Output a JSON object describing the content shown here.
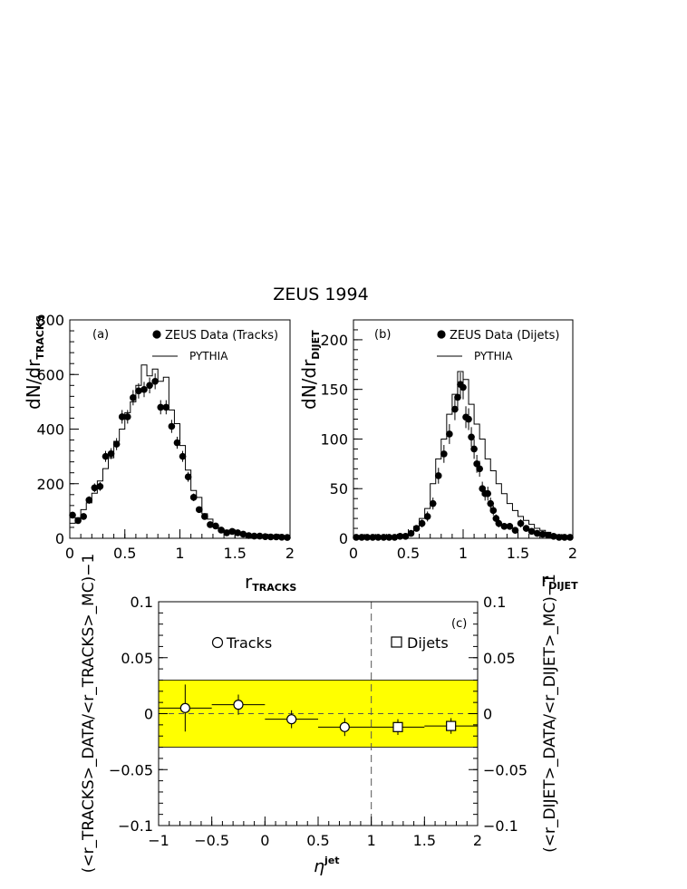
{
  "title": "ZEUS 1994",
  "colors": {
    "band": "#ffff00",
    "ink": "#000000"
  },
  "chart_data": [
    {
      "id": "a",
      "type": "scatter",
      "panel_label": "(a)",
      "ylabel_main": "dN/dr",
      "ylabel_sub": "TRACKS",
      "xlabel_main": "r",
      "xlabel_sub": "TRACKS",
      "xlim": [
        0,
        2
      ],
      "ylim": [
        0,
        800
      ],
      "xticks": [
        0,
        0.5,
        1,
        1.5,
        2
      ],
      "xtick_labels": [
        "0",
        "0.5",
        "1",
        "1.5",
        "2"
      ],
      "yticks": [
        0,
        200,
        400,
        600,
        800
      ],
      "ytick_labels": [
        "0",
        "200",
        "400",
        "600",
        "800"
      ],
      "legend": {
        "placement": "top-right",
        "data_label": "ZEUS Data (Tracks)",
        "mc_label": "PYTHIA"
      },
      "series": [
        {
          "name": "ZEUS Data (Tracks)",
          "x": [
            0.025,
            0.075,
            0.125,
            0.175,
            0.225,
            0.275,
            0.325,
            0.375,
            0.425,
            0.475,
            0.525,
            0.575,
            0.625,
            0.675,
            0.725,
            0.775,
            0.825,
            0.875,
            0.925,
            0.975,
            1.025,
            1.075,
            1.125,
            1.175,
            1.225,
            1.275,
            1.325,
            1.375,
            1.425,
            1.475,
            1.525,
            1.575,
            1.625,
            1.675,
            1.725,
            1.775,
            1.825,
            1.875,
            1.925,
            1.975
          ],
          "y": [
            85,
            65,
            80,
            140,
            185,
            190,
            300,
            310,
            345,
            445,
            445,
            515,
            540,
            545,
            560,
            575,
            480,
            480,
            410,
            350,
            300,
            225,
            150,
            105,
            80,
            50,
            45,
            30,
            20,
            25,
            20,
            15,
            10,
            8,
            8,
            6,
            5,
            5,
            4,
            3
          ],
          "yerr": [
            12,
            10,
            10,
            14,
            16,
            16,
            20,
            20,
            22,
            25,
            25,
            28,
            28,
            28,
            29,
            29,
            26,
            26,
            24,
            22,
            20,
            18,
            14,
            12,
            10,
            9,
            8,
            7,
            6,
            6,
            5,
            5,
            4,
            4,
            4,
            3,
            3,
            3,
            2,
            2
          ]
        },
        {
          "name": "PYTHIA",
          "edges": [
            0,
            0.05,
            0.1,
            0.15,
            0.2,
            0.25,
            0.3,
            0.35,
            0.4,
            0.45,
            0.5,
            0.55,
            0.6,
            0.65,
            0.7,
            0.75,
            0.8,
            0.85,
            0.9,
            0.95,
            1.0,
            1.05,
            1.1,
            1.15,
            1.2,
            1.25,
            1.3,
            1.35,
            1.4,
            1.45,
            1.5,
            1.55,
            1.6,
            1.65,
            1.7,
            1.75,
            1.8,
            1.85,
            1.9,
            1.95,
            2.0
          ],
          "values": [
            55,
            75,
            105,
            130,
            165,
            210,
            255,
            295,
            355,
            400,
            460,
            500,
            560,
            635,
            595,
            620,
            575,
            590,
            470,
            420,
            340,
            250,
            175,
            150,
            90,
            70,
            45,
            35,
            30,
            25,
            22,
            18,
            14,
            12,
            10,
            8,
            7,
            6,
            5,
            4
          ]
        }
      ]
    },
    {
      "id": "b",
      "type": "scatter",
      "panel_label": "(b)",
      "ylabel_main": "dN/dr",
      "ylabel_sub": "DIJET",
      "xlabel_main": "r",
      "xlabel_sub": "DIJET",
      "xlim": [
        0,
        2
      ],
      "ylim": [
        0,
        220
      ],
      "xticks": [
        0,
        0.5,
        1,
        1.5,
        2
      ],
      "xtick_labels": [
        "0",
        "0.5",
        "1",
        "1.5",
        "2"
      ],
      "yticks": [
        0,
        50,
        100,
        150,
        200
      ],
      "ytick_labels": [
        "0",
        "50",
        "100",
        "150",
        "200"
      ],
      "legend": {
        "placement": "top-right",
        "data_label": "ZEUS Data (Dijets)",
        "mc_label": "PYTHIA"
      },
      "series": [
        {
          "name": "ZEUS Data (Dijets)",
          "x": [
            0.025,
            0.075,
            0.125,
            0.175,
            0.225,
            0.275,
            0.325,
            0.375,
            0.425,
            0.475,
            0.525,
            0.575,
            0.625,
            0.675,
            0.725,
            0.775,
            0.825,
            0.875,
            0.925,
            0.95,
            0.975,
            1.0,
            1.025,
            1.05,
            1.075,
            1.1,
            1.125,
            1.15,
            1.175,
            1.2,
            1.225,
            1.25,
            1.275,
            1.3,
            1.325,
            1.375,
            1.425,
            1.475,
            1.525,
            1.575,
            1.625,
            1.675,
            1.725,
            1.775,
            1.825,
            1.875,
            1.925,
            1.975
          ],
          "y": [
            1,
            1,
            1,
            1,
            1,
            1,
            1,
            1,
            2,
            2,
            5,
            10,
            15,
            22,
            35,
            63,
            85,
            105,
            130,
            142,
            155,
            152,
            122,
            120,
            102,
            90,
            75,
            70,
            50,
            45,
            45,
            35,
            28,
            20,
            15,
            12,
            12,
            8,
            15,
            10,
            7,
            5,
            4,
            3,
            2,
            1,
            1,
            1
          ],
          "yerr": [
            1,
            1,
            1,
            1,
            1,
            1,
            1,
            1,
            1,
            1,
            2,
            3,
            4,
            5,
            6,
            8,
            9,
            10,
            11,
            12,
            12,
            12,
            11,
            11,
            10,
            10,
            9,
            8,
            7,
            7,
            7,
            6,
            5,
            4,
            4,
            3,
            3,
            3,
            4,
            3,
            3,
            2,
            2,
            2,
            1,
            1,
            1,
            1
          ]
        },
        {
          "name": "PYTHIA",
          "edges": [
            0,
            0.05,
            0.1,
            0.15,
            0.2,
            0.25,
            0.3,
            0.35,
            0.4,
            0.45,
            0.5,
            0.55,
            0.6,
            0.65,
            0.7,
            0.75,
            0.8,
            0.85,
            0.9,
            0.95,
            1.0,
            1.05,
            1.1,
            1.15,
            1.2,
            1.25,
            1.3,
            1.35,
            1.4,
            1.45,
            1.5,
            1.55,
            1.6,
            1.65,
            1.7,
            1.75,
            1.8,
            1.85,
            1.9,
            1.95,
            2.0
          ],
          "values": [
            1,
            1,
            1,
            1,
            1,
            1,
            1,
            1,
            2,
            3,
            6,
            12,
            20,
            30,
            55,
            80,
            100,
            125,
            145,
            168,
            160,
            135,
            115,
            100,
            80,
            68,
            55,
            45,
            35,
            28,
            22,
            18,
            14,
            10,
            8,
            6,
            4,
            3,
            2,
            1
          ]
        }
      ]
    },
    {
      "id": "c",
      "type": "scatter",
      "panel_label": "(c)",
      "ylabel_left": "(<r_TRACKS>_DATA/<r_TRACKS>_MC)−1",
      "ylabel_right": "(<r_DIJET>_DATA/<r_DIJET>_MC)−1",
      "xlabel_main": "η",
      "xlabel_sup": "jet",
      "xlim": [
        -1,
        2
      ],
      "ylim": [
        -0.1,
        0.1
      ],
      "xticks": [
        -1,
        -0.5,
        0,
        0.5,
        1,
        1.5,
        2
      ],
      "xtick_labels": [
        "−1",
        "−0.5",
        "0",
        "0.5",
        "1",
        "1.5",
        "2"
      ],
      "yticks": [
        -0.1,
        -0.05,
        0,
        0.05,
        0.1
      ],
      "ytick_labels": [
        "−0.1",
        "−0.05",
        "0",
        "0.05",
        "0.1"
      ],
      "band": [
        -0.03,
        0.03
      ],
      "vline_x": 1,
      "legend_tracks": "Tracks",
      "legend_dijets": "Dijets",
      "series": [
        {
          "name": "Tracks",
          "marker": "circle",
          "x": [
            -0.75,
            -0.25,
            0.25,
            0.75
          ],
          "xerr": [
            0.25,
            0.25,
            0.25,
            0.25
          ],
          "y": [
            0.005,
            0.008,
            -0.005,
            -0.012
          ],
          "yerr": [
            0.021,
            0.009,
            0.008,
            0.008
          ]
        },
        {
          "name": "Dijets",
          "marker": "square",
          "x": [
            1.25,
            1.75
          ],
          "xerr": [
            0.25,
            0.25
          ],
          "y": [
            -0.012,
            -0.011
          ],
          "yerr": [
            0.007,
            0.007
          ]
        }
      ]
    }
  ]
}
